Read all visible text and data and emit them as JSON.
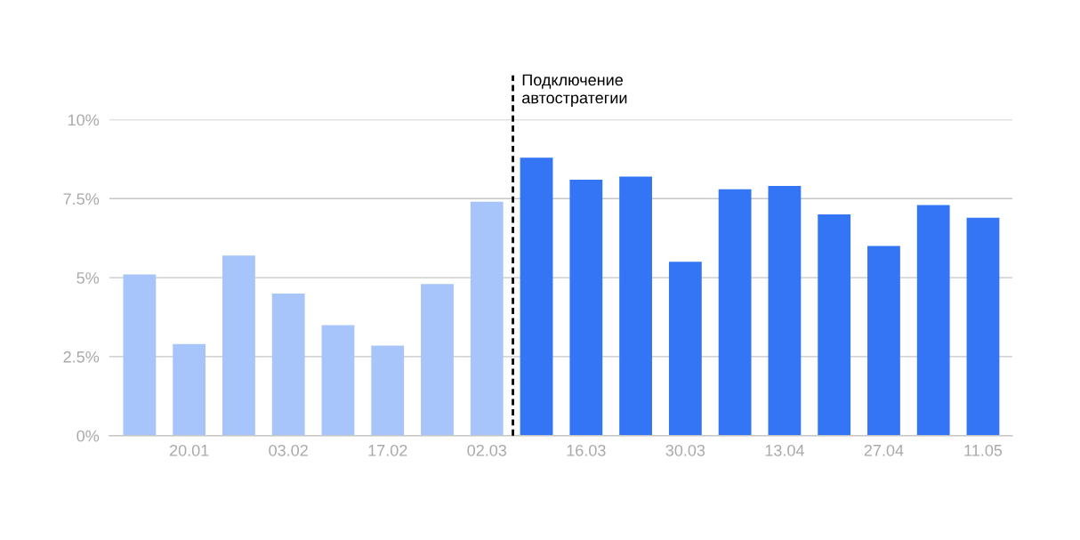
{
  "chart_data": {
    "type": "bar",
    "categories": [
      null,
      "20.01",
      null,
      "03.02",
      null,
      "17.02",
      null,
      "02.03",
      null,
      "16.03",
      null,
      "30.03",
      null,
      "13.04",
      null,
      "27.04",
      null,
      "11.05"
    ],
    "values": [
      5.1,
      2.9,
      5.7,
      4.5,
      3.5,
      2.85,
      4.8,
      7.4,
      8.8,
      8.1,
      8.2,
      5.5,
      7.8,
      7.9,
      7.0,
      6.0,
      7.3,
      6.9
    ],
    "colors": [
      "#a7c4fb",
      "#a7c4fb",
      "#a7c4fb",
      "#a7c4fb",
      "#a7c4fb",
      "#a7c4fb",
      "#a7c4fb",
      "#a7c4fb",
      "#3475f5",
      "#3475f5",
      "#3475f5",
      "#3475f5",
      "#3475f5",
      "#3475f5",
      "#3475f5",
      "#3475f5",
      "#3475f5",
      "#3475f5"
    ],
    "ylim": [
      0,
      10
    ],
    "yticks": [
      {
        "value": 0,
        "label": "0%"
      },
      {
        "value": 2.5,
        "label": "2.5%"
      },
      {
        "value": 5,
        "label": "5%"
      },
      {
        "value": 7.5,
        "label": "7.5%"
      },
      {
        "value": 10,
        "label": "10%"
      }
    ],
    "grid": "y",
    "annotations": [
      "Подключение\nавтостратегии"
    ]
  }
}
